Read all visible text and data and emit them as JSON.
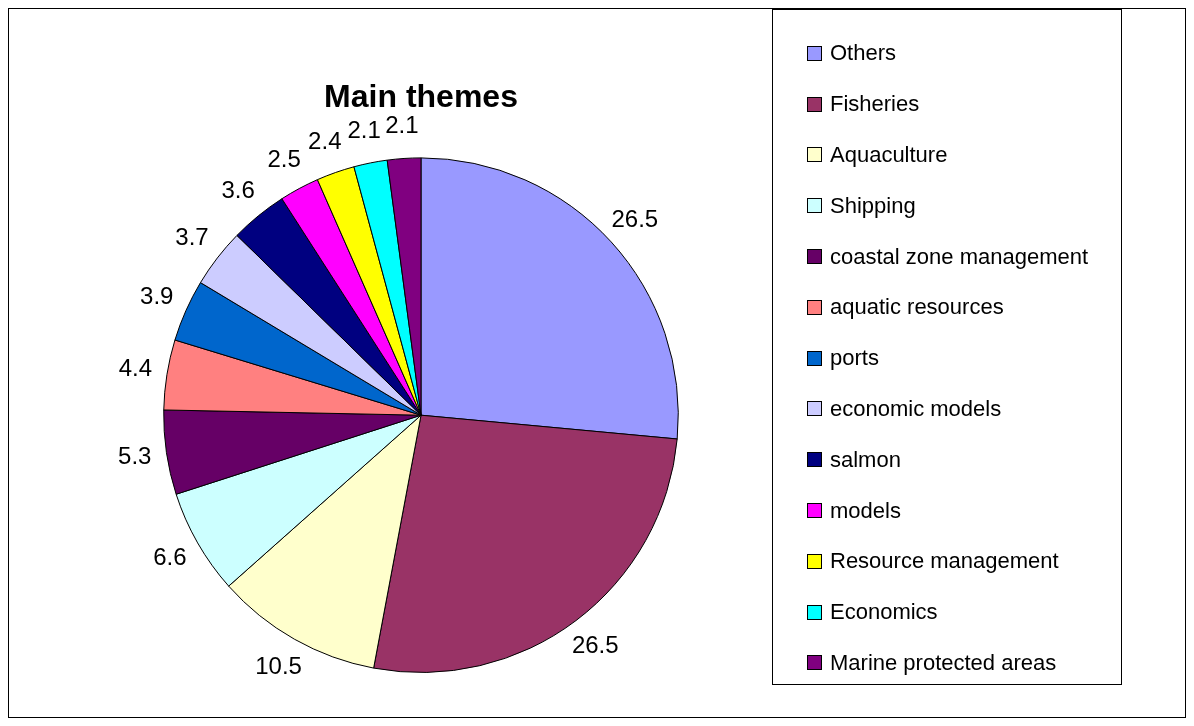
{
  "chart_data": {
    "type": "pie",
    "title": "Main themes",
    "categories": [
      "Others",
      "Fisheries",
      "Aquaculture",
      "Shipping",
      "coastal zone management",
      "aquatic resources",
      "ports",
      "economic models",
      "salmon",
      "models",
      "Resource management",
      "Economics",
      "Marine protected areas"
    ],
    "values": [
      26.5,
      26.5,
      10.5,
      6.6,
      5.3,
      4.4,
      3.9,
      3.7,
      3.6,
      2.5,
      2.4,
      2.1,
      2.1
    ],
    "colors": [
      "#9999ff",
      "#993366",
      "#ffffcc",
      "#ccffff",
      "#660066",
      "#ff8080",
      "#0066cc",
      "#ccccff",
      "#000080",
      "#ff00ff",
      "#ffff00",
      "#00ffff",
      "#800080"
    ],
    "data_labels": true,
    "legend": "right"
  }
}
